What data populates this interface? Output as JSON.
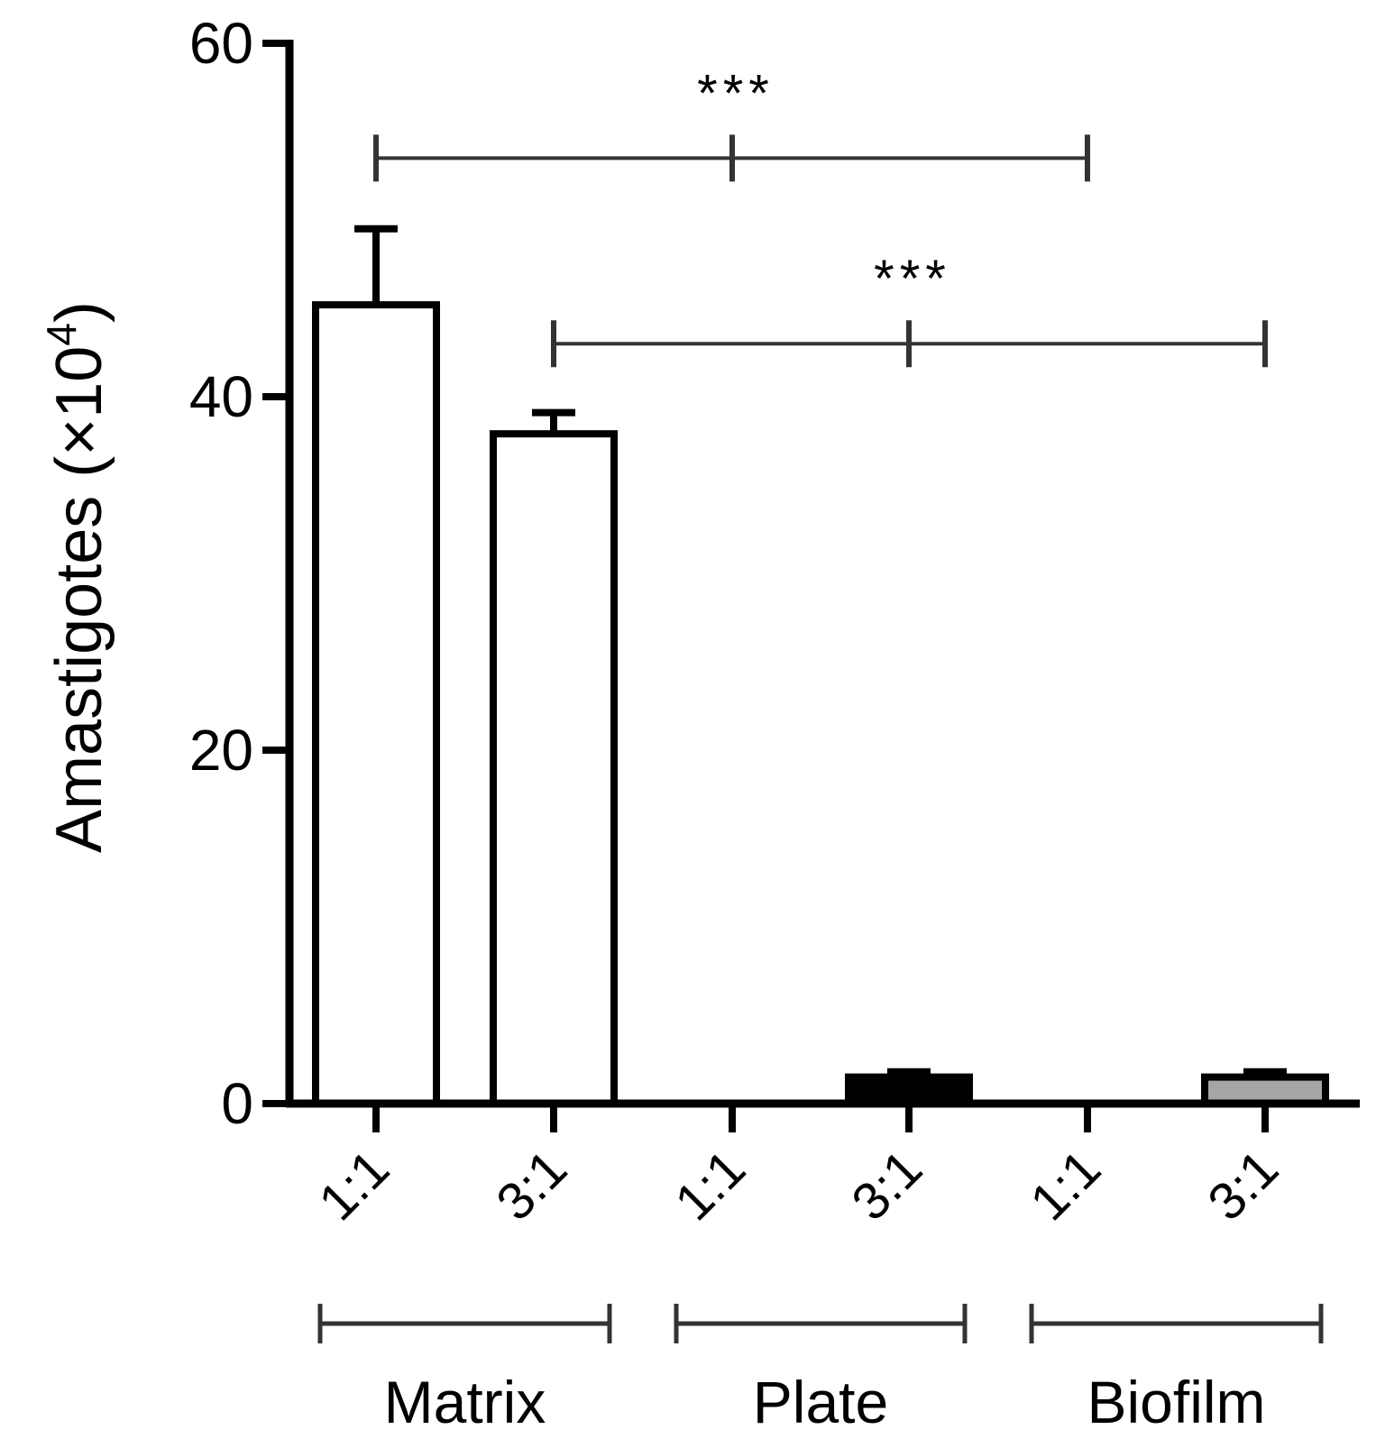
{
  "chart_data": {
    "type": "bar",
    "ylabel": "Amastigotes (×10",
    "ylabel_superscript": "4",
    "ylabel_close": ")",
    "ylim": [
      0,
      60
    ],
    "yticks": [
      0,
      20,
      40,
      60
    ],
    "categories": [
      "1:1",
      "3:1",
      "1:1",
      "3:1",
      "1:1",
      "3:1"
    ],
    "values": [
      45.2,
      37.9,
      0,
      1.5,
      0,
      1.5
    ],
    "errors": [
      4.3,
      1.2,
      0,
      0.3,
      0,
      0.3
    ],
    "bar_colors": [
      "#ffffff",
      "#ffffff",
      "#000000",
      "#000000",
      "#a6a6a6",
      "#a6a6a6"
    ],
    "groups": [
      {
        "label": "Matrix",
        "span": [
          0,
          1
        ]
      },
      {
        "label": "Plate",
        "span": [
          2,
          3
        ]
      },
      {
        "label": "Biofilm",
        "span": [
          4,
          5
        ]
      }
    ],
    "significance": [
      {
        "label": "***",
        "from": 0,
        "mid": 2,
        "to": 4,
        "y": 53.5
      },
      {
        "label": "***",
        "from": 1,
        "mid": 3,
        "to": 5,
        "y": 43
      }
    ],
    "grid": false
  }
}
